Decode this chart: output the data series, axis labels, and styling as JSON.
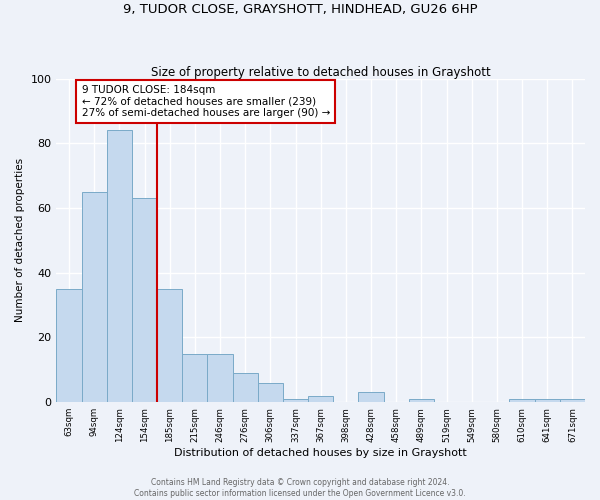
{
  "title": "9, TUDOR CLOSE, GRAYSHOTT, HINDHEAD, GU26 6HP",
  "subtitle": "Size of property relative to detached houses in Grayshott",
  "xlabel": "Distribution of detached houses by size in Grayshott",
  "ylabel": "Number of detached properties",
  "categories": [
    "63sqm",
    "94sqm",
    "124sqm",
    "154sqm",
    "185sqm",
    "215sqm",
    "246sqm",
    "276sqm",
    "306sqm",
    "337sqm",
    "367sqm",
    "398sqm",
    "428sqm",
    "458sqm",
    "489sqm",
    "519sqm",
    "549sqm",
    "580sqm",
    "610sqm",
    "641sqm",
    "671sqm"
  ],
  "values": [
    35,
    65,
    84,
    63,
    35,
    15,
    15,
    9,
    6,
    1,
    2,
    0,
    3,
    0,
    1,
    0,
    0,
    0,
    1,
    1,
    1
  ],
  "bar_color": "#c5d9ee",
  "bar_edge_color": "#7aaac8",
  "vline_color": "#cc0000",
  "annotation_line1": "9 TUDOR CLOSE: 184sqm",
  "annotation_line2": "← 72% of detached houses are smaller (239)",
  "annotation_line3": "27% of semi-detached houses are larger (90) →",
  "annotation_box_color": "#cc0000",
  "ylim": [
    0,
    100
  ],
  "yticks": [
    0,
    20,
    40,
    60,
    80,
    100
  ],
  "bg_color": "#eef2f9",
  "footer1": "Contains HM Land Registry data © Crown copyright and database right 2024.",
  "footer2": "Contains public sector information licensed under the Open Government Licence v3.0."
}
